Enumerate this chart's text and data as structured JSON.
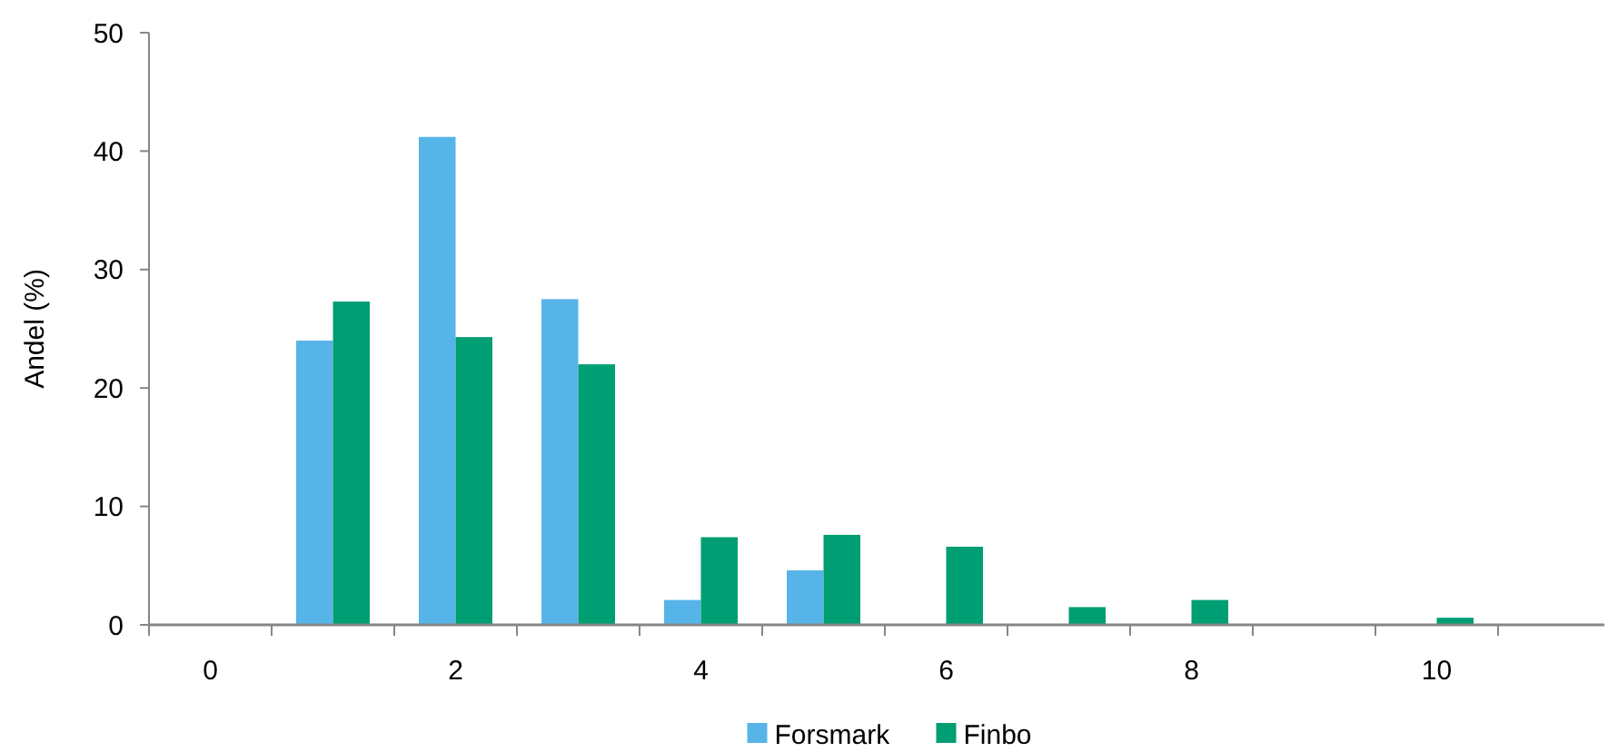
{
  "chart_data": {
    "type": "bar",
    "ylabel": "Andel (%)",
    "categories": [
      "0",
      null,
      "2",
      null,
      "4",
      null,
      "6",
      null,
      "8",
      null,
      "10",
      null
    ],
    "series": [
      {
        "name": "Forsmark",
        "color": "#56b4e8",
        "values": [
          0,
          24.0,
          41.2,
          27.5,
          2.1,
          4.6,
          null,
          0,
          0,
          null,
          0,
          0
        ]
      },
      {
        "name": "Finbo",
        "color": "#009e73",
        "values": [
          0,
          27.3,
          24.3,
          22.0,
          7.4,
          7.6,
          6.6,
          1.5,
          2.1,
          0,
          0.6,
          0
        ]
      }
    ],
    "ylim": [
      0,
      50
    ],
    "yticks": [
      0,
      10,
      20,
      30,
      40,
      50
    ],
    "grid": false,
    "legend": "bottom"
  }
}
